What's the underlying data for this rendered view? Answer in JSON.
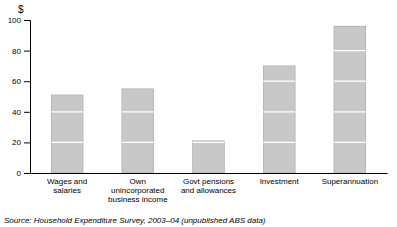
{
  "chart_data": {
    "type": "bar",
    "categories": [
      "Wages and\nsalaries",
      "Own\nunincorporated\nbusiness income",
      "Govt pensions\nand allowances",
      "Investment",
      "Superannuation"
    ],
    "values": [
      51,
      55,
      21,
      70,
      96
    ],
    "color": "#c8c8c8",
    "ylim": [
      0,
      100
    ],
    "yticks": [
      0,
      20,
      40,
      60,
      80,
      100
    ],
    "ylabel": "$",
    "source": "Source: Household Expenditure Survey, 2003–04 (unpublished ABS data)",
    "grid": false
  }
}
